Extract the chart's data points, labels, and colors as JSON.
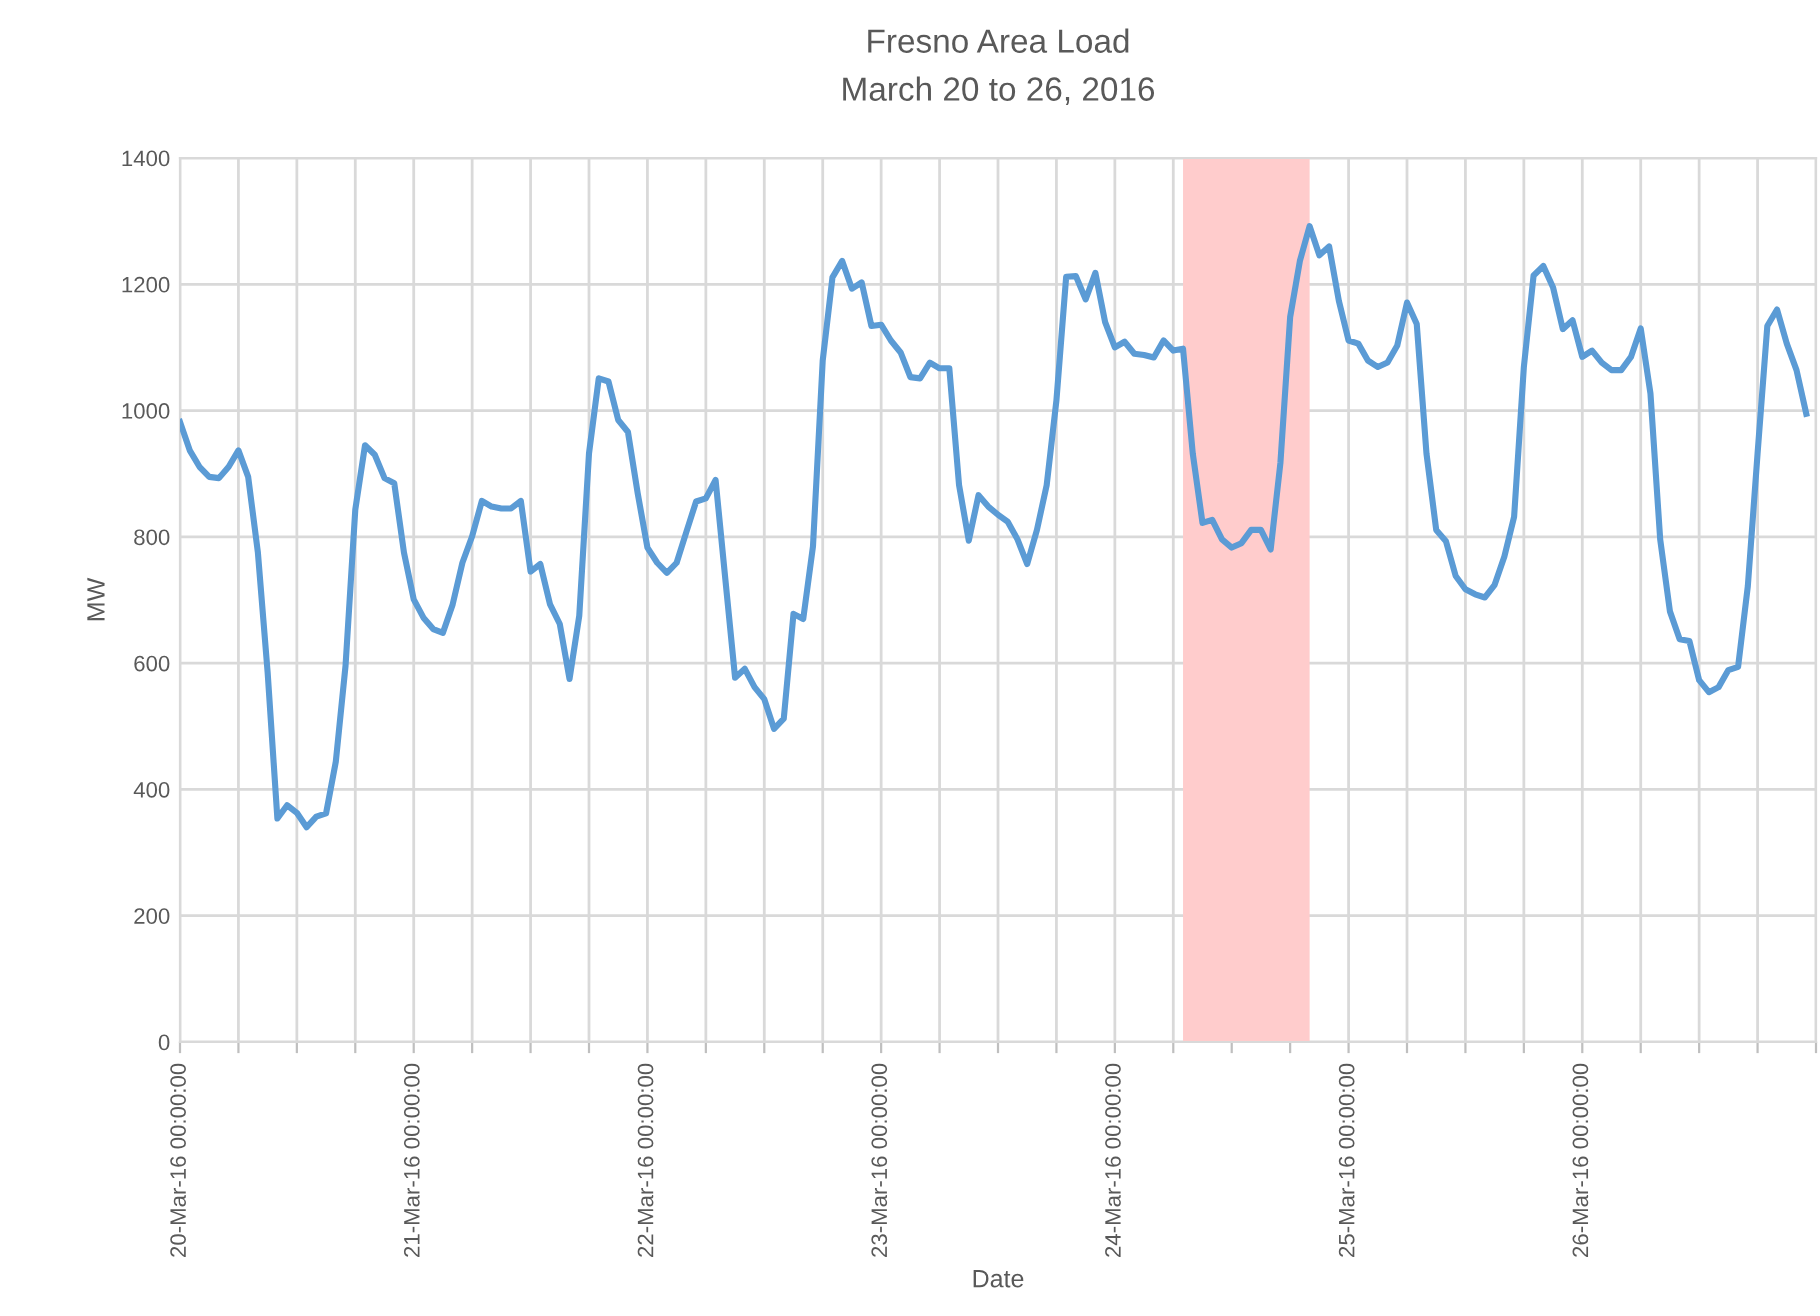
{
  "chart_data": {
    "type": "line",
    "title": "Fresno Area Load",
    "subtitle": "March 20 to 26, 2016",
    "xlabel": "Date",
    "ylabel": "MW",
    "x": [
      "2016-03-20T00:00",
      "2016-03-20T01:00",
      "2016-03-20T02:00",
      "2016-03-20T03:00",
      "2016-03-20T04:00",
      "2016-03-20T05:00",
      "2016-03-20T06:00",
      "2016-03-20T07:00",
      "2016-03-20T08:00",
      "2016-03-20T09:00",
      "2016-03-20T10:00",
      "2016-03-20T11:00",
      "2016-03-20T12:00",
      "2016-03-20T13:00",
      "2016-03-20T14:00",
      "2016-03-20T15:00",
      "2016-03-20T16:00",
      "2016-03-20T17:00",
      "2016-03-20T18:00",
      "2016-03-20T19:00",
      "2016-03-20T20:00",
      "2016-03-20T21:00",
      "2016-03-20T22:00",
      "2016-03-20T23:00",
      "2016-03-21T00:00",
      "2016-03-21T01:00",
      "2016-03-21T02:00",
      "2016-03-21T03:00",
      "2016-03-21T04:00",
      "2016-03-21T05:00",
      "2016-03-21T06:00",
      "2016-03-21T07:00",
      "2016-03-21T08:00",
      "2016-03-21T09:00",
      "2016-03-21T10:00",
      "2016-03-21T11:00",
      "2016-03-21T12:00",
      "2016-03-21T13:00",
      "2016-03-21T14:00",
      "2016-03-21T15:00",
      "2016-03-21T16:00",
      "2016-03-21T17:00",
      "2016-03-21T18:00",
      "2016-03-21T19:00",
      "2016-03-21T20:00",
      "2016-03-21T21:00",
      "2016-03-21T22:00",
      "2016-03-21T23:00",
      "2016-03-22T00:00",
      "2016-03-22T01:00",
      "2016-03-22T02:00",
      "2016-03-22T03:00",
      "2016-03-22T04:00",
      "2016-03-22T05:00",
      "2016-03-22T06:00",
      "2016-03-22T07:00",
      "2016-03-22T08:00",
      "2016-03-22T09:00",
      "2016-03-22T10:00",
      "2016-03-22T11:00",
      "2016-03-22T12:00",
      "2016-03-22T13:00",
      "2016-03-22T14:00",
      "2016-03-22T15:00",
      "2016-03-22T16:00",
      "2016-03-22T17:00",
      "2016-03-22T18:00",
      "2016-03-22T19:00",
      "2016-03-22T20:00",
      "2016-03-22T21:00",
      "2016-03-22T22:00",
      "2016-03-22T23:00",
      "2016-03-23T00:00",
      "2016-03-23T01:00",
      "2016-03-23T02:00",
      "2016-03-23T03:00",
      "2016-03-23T04:00",
      "2016-03-23T05:00",
      "2016-03-23T06:00",
      "2016-03-23T07:00",
      "2016-03-23T08:00",
      "2016-03-23T09:00",
      "2016-03-23T10:00",
      "2016-03-23T11:00",
      "2016-03-23T12:00",
      "2016-03-23T13:00",
      "2016-03-23T14:00",
      "2016-03-23T15:00",
      "2016-03-23T16:00",
      "2016-03-23T17:00",
      "2016-03-23T18:00",
      "2016-03-23T19:00",
      "2016-03-23T20:00",
      "2016-03-23T21:00",
      "2016-03-23T22:00",
      "2016-03-23T23:00",
      "2016-03-24T00:00",
      "2016-03-24T01:00",
      "2016-03-24T02:00",
      "2016-03-24T03:00",
      "2016-03-24T04:00",
      "2016-03-24T05:00",
      "2016-03-24T06:00",
      "2016-03-24T07:00",
      "2016-03-24T08:00",
      "2016-03-24T09:00",
      "2016-03-24T10:00",
      "2016-03-24T11:00",
      "2016-03-24T12:00",
      "2016-03-24T13:00",
      "2016-03-24T14:00",
      "2016-03-24T15:00",
      "2016-03-24T16:00",
      "2016-03-24T17:00",
      "2016-03-24T18:00",
      "2016-03-24T19:00",
      "2016-03-24T20:00",
      "2016-03-24T21:00",
      "2016-03-24T22:00",
      "2016-03-24T23:00",
      "2016-03-25T00:00",
      "2016-03-25T01:00",
      "2016-03-25T02:00",
      "2016-03-25T03:00",
      "2016-03-25T04:00",
      "2016-03-25T05:00",
      "2016-03-25T06:00",
      "2016-03-25T07:00",
      "2016-03-25T08:00",
      "2016-03-25T09:00",
      "2016-03-25T10:00",
      "2016-03-25T11:00",
      "2016-03-25T12:00",
      "2016-03-25T13:00",
      "2016-03-25T14:00",
      "2016-03-25T15:00",
      "2016-03-25T16:00",
      "2016-03-25T17:00",
      "2016-03-25T18:00",
      "2016-03-25T19:00",
      "2016-03-25T20:00",
      "2016-03-25T21:00",
      "2016-03-25T22:00",
      "2016-03-25T23:00",
      "2016-03-26T00:00",
      "2016-03-26T01:00",
      "2016-03-26T02:00",
      "2016-03-26T03:00",
      "2016-03-26T04:00",
      "2016-03-26T05:00",
      "2016-03-26T06:00",
      "2016-03-26T07:00",
      "2016-03-26T08:00",
      "2016-03-26T09:00",
      "2016-03-26T10:00",
      "2016-03-26T11:00",
      "2016-03-26T12:00",
      "2016-03-26T13:00",
      "2016-03-26T14:00",
      "2016-03-26T15:00",
      "2016-03-26T16:00",
      "2016-03-26T17:00",
      "2016-03-26T18:00",
      "2016-03-26T19:00",
      "2016-03-26T20:00",
      "2016-03-26T21:00",
      "2016-03-26T22:00",
      "2016-03-26T23:00"
    ],
    "series": [
      {
        "color": "#5b9bd5",
        "values": [
          982,
          937,
          911,
          895,
          893,
          911,
          937,
          895,
          775,
          585,
          354,
          375,
          363,
          340,
          357,
          362,
          444,
          596,
          843,
          945,
          930,
          893,
          885,
          775,
          701,
          672,
          654,
          648,
          693,
          759,
          801,
          857,
          848,
          845,
          845,
          857,
          745,
          757,
          693,
          662,
          575,
          675,
          932,
          1051,
          1046,
          985,
          966,
          869,
          783,
          759,
          743,
          759,
          808,
          856,
          861,
          890,
          733,
          577,
          591,
          562,
          543,
          496,
          512,
          678,
          670,
          785,
          1079,
          1211,
          1237,
          1193,
          1203,
          1134,
          1136,
          1111,
          1092,
          1053,
          1051,
          1076,
          1067,
          1067,
          882,
          794,
          866,
          848,
          835,
          824,
          796,
          757,
          811,
          882,
          1016,
          1212,
          1213,
          1176,
          1218,
          1140,
          1100,
          1109,
          1090,
          1088,
          1084,
          1111,
          1095,
          1098,
          932,
          822,
          827,
          796,
          783,
          790,
          811,
          811,
          780,
          917,
          1148,
          1237,
          1292,
          1246,
          1260,
          1174,
          1111,
          1106,
          1079,
          1069,
          1076,
          1103,
          1171,
          1137,
          932,
          811,
          793,
          738,
          717,
          709,
          704,
          724,
          769,
          832,
          1069,
          1214,
          1229,
          1195,
          1129,
          1143,
          1085,
          1095,
          1076,
          1064,
          1064,
          1085,
          1130,
          1027,
          796,
          682,
          638,
          635,
          573,
          554,
          562,
          589,
          594,
          722,
          932,
          1134,
          1160,
          1106,
          1064,
          995
        ]
      }
    ],
    "xlim": [
      "2016-03-20T00:00",
      "2016-03-27T00:00"
    ],
    "xticks": [
      {
        "value": "2016-03-20T00:00",
        "label": "20-Mar-16 00:00:00"
      },
      {
        "value": "2016-03-20T06:00",
        "label": null
      },
      {
        "value": "2016-03-20T12:00",
        "label": null
      },
      {
        "value": "2016-03-20T18:00",
        "label": null
      },
      {
        "value": "2016-03-21T00:00",
        "label": "21-Mar-16 00:00:00"
      },
      {
        "value": "2016-03-21T06:00",
        "label": null
      },
      {
        "value": "2016-03-21T12:00",
        "label": null
      },
      {
        "value": "2016-03-21T18:00",
        "label": null
      },
      {
        "value": "2016-03-22T00:00",
        "label": "22-Mar-16 00:00:00"
      },
      {
        "value": "2016-03-22T06:00",
        "label": null
      },
      {
        "value": "2016-03-22T12:00",
        "label": null
      },
      {
        "value": "2016-03-22T18:00",
        "label": null
      },
      {
        "value": "2016-03-23T00:00",
        "label": "23-Mar-16 00:00:00"
      },
      {
        "value": "2016-03-23T06:00",
        "label": null
      },
      {
        "value": "2016-03-23T12:00",
        "label": null
      },
      {
        "value": "2016-03-23T18:00",
        "label": null
      },
      {
        "value": "2016-03-24T00:00",
        "label": "24-Mar-16 00:00:00"
      },
      {
        "value": "2016-03-24T06:00",
        "label": null
      },
      {
        "value": "2016-03-24T12:00",
        "label": null
      },
      {
        "value": "2016-03-24T18:00",
        "label": null
      },
      {
        "value": "2016-03-25T00:00",
        "label": "25-Mar-16 00:00:00"
      },
      {
        "value": "2016-03-25T06:00",
        "label": null
      },
      {
        "value": "2016-03-25T12:00",
        "label": null
      },
      {
        "value": "2016-03-25T18:00",
        "label": null
      },
      {
        "value": "2016-03-26T00:00",
        "label": "26-Mar-16 00:00:00"
      },
      {
        "value": "2016-03-26T06:00",
        "label": null
      },
      {
        "value": "2016-03-26T12:00",
        "label": null
      },
      {
        "value": "2016-03-26T18:00",
        "label": null
      },
      {
        "value": "2016-03-27T00:00",
        "label": null
      }
    ],
    "ylim": [
      0,
      1400
    ],
    "yticks": [
      0,
      200,
      400,
      600,
      800,
      1000,
      1200,
      1400
    ],
    "bands": [
      {
        "axis": "x",
        "from": "2016-03-24T07:00",
        "to": "2016-03-24T20:00",
        "color": "#ffcccc"
      }
    ],
    "grid": true,
    "legend": false,
    "marker": "none",
    "line_style": "solid"
  }
}
